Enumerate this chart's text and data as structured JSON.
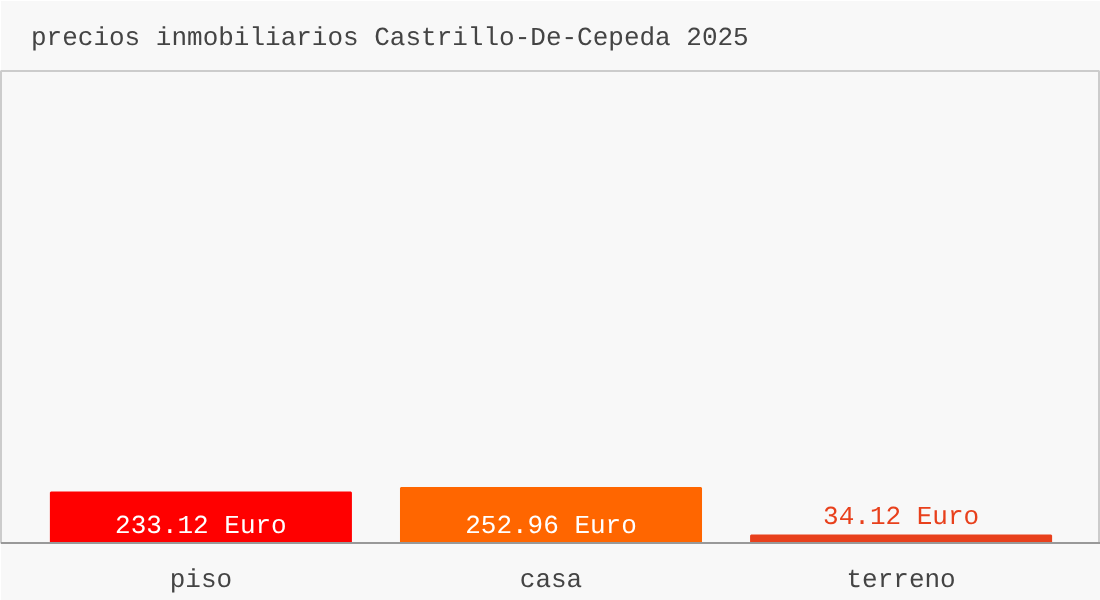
{
  "chart_data": {
    "type": "bar",
    "title": "precios inmobiliarios Castrillo-De-Cepeda 2025",
    "categories": [
      "piso",
      "casa",
      "terreno"
    ],
    "values": [
      233.12,
      252.96,
      34.12
    ],
    "colors": [
      "#ff0000",
      "#ff6600",
      "#e8401c"
    ],
    "value_labels": [
      "233.12 Euro",
      "252.96 Euro",
      "34.12 Euro"
    ],
    "grid": false
  }
}
